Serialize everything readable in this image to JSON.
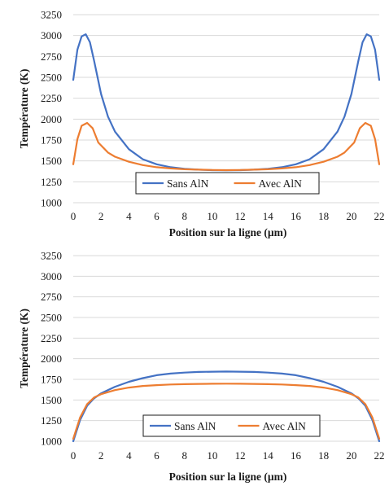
{
  "colors": {
    "sans": "#4472C4",
    "avec": "#ED7D31",
    "grid": "#D9D9D9"
  },
  "chart_data": [
    {
      "type": "line",
      "title": "",
      "xlabel": "Position sur la ligne (µm)",
      "ylabel": "Température (K)",
      "xlim": [
        0,
        22
      ],
      "ylim": [
        1000,
        3250
      ],
      "xticks": [
        0,
        2,
        4,
        6,
        8,
        10,
        12,
        14,
        16,
        18,
        20,
        22
      ],
      "yticks": [
        1000,
        1250,
        1500,
        1750,
        2000,
        2250,
        2500,
        2750,
        3000,
        3250
      ],
      "grid": "horizontal",
      "legend": "bottom-center",
      "series": [
        {
          "name": "Sans AlN",
          "x": [
            0,
            0.3,
            0.6,
            0.9,
            1.2,
            1.5,
            2,
            2.5,
            3,
            4,
            5,
            6,
            7,
            8,
            9,
            10,
            11,
            12,
            13,
            14,
            15,
            16,
            17,
            18,
            19,
            19.5,
            20,
            20.5,
            20.8,
            21.1,
            21.4,
            21.7,
            22
          ],
          "y": [
            2470,
            2830,
            2990,
            3015,
            2920,
            2700,
            2300,
            2030,
            1850,
            1640,
            1520,
            1460,
            1425,
            1405,
            1395,
            1390,
            1388,
            1390,
            1395,
            1405,
            1425,
            1460,
            1520,
            1640,
            1850,
            2030,
            2300,
            2700,
            2920,
            3015,
            2990,
            2830,
            2470
          ]
        },
        {
          "name": "Avec AlN",
          "x": [
            0,
            0.3,
            0.6,
            1.0,
            1.4,
            1.8,
            2.5,
            3,
            4,
            5,
            6,
            7,
            8,
            9,
            10,
            11,
            12,
            13,
            14,
            15,
            16,
            17,
            18,
            19,
            19.5,
            20.2,
            20.6,
            21.0,
            21.4,
            21.7,
            22
          ],
          "y": [
            1460,
            1760,
            1920,
            1955,
            1890,
            1720,
            1600,
            1550,
            1490,
            1450,
            1425,
            1410,
            1400,
            1395,
            1392,
            1390,
            1392,
            1395,
            1400,
            1410,
            1425,
            1450,
            1490,
            1550,
            1600,
            1720,
            1890,
            1955,
            1920,
            1760,
            1460
          ]
        }
      ]
    },
    {
      "type": "line",
      "title": "",
      "xlabel": "Position sur la ligne (µm)",
      "ylabel": "Température (K)",
      "xlim": [
        0,
        22
      ],
      "ylim": [
        1000,
        3250
      ],
      "xticks": [
        0,
        2,
        4,
        6,
        8,
        10,
        12,
        14,
        16,
        18,
        20,
        22
      ],
      "yticks": [
        1000,
        1250,
        1500,
        1750,
        2000,
        2250,
        2500,
        2750,
        3000,
        3250
      ],
      "grid": "horizontal",
      "legend": "bottom-center",
      "series": [
        {
          "name": "Sans AlN",
          "x": [
            0,
            0.5,
            1,
            1.5,
            2,
            3,
            4,
            5,
            6,
            7,
            8,
            9,
            10,
            11,
            12,
            13,
            14,
            15,
            16,
            17,
            18,
            19,
            20,
            20.5,
            21,
            21.5,
            22
          ],
          "y": [
            1000,
            1260,
            1430,
            1520,
            1580,
            1660,
            1720,
            1765,
            1800,
            1820,
            1832,
            1840,
            1843,
            1845,
            1843,
            1840,
            1832,
            1820,
            1800,
            1765,
            1720,
            1660,
            1580,
            1520,
            1430,
            1260,
            1000
          ]
        },
        {
          "name": "Avec AlN",
          "x": [
            0,
            0.5,
            1,
            1.5,
            2,
            3,
            4,
            5,
            6,
            7,
            8,
            9,
            10,
            11,
            12,
            13,
            14,
            15,
            16,
            17,
            18,
            19,
            20,
            20.5,
            21,
            21.5,
            22
          ],
          "y": [
            1030,
            1290,
            1450,
            1530,
            1570,
            1620,
            1650,
            1670,
            1680,
            1688,
            1692,
            1695,
            1697,
            1698,
            1697,
            1695,
            1692,
            1688,
            1680,
            1670,
            1650,
            1620,
            1570,
            1530,
            1450,
            1290,
            1030
          ]
        }
      ]
    }
  ]
}
